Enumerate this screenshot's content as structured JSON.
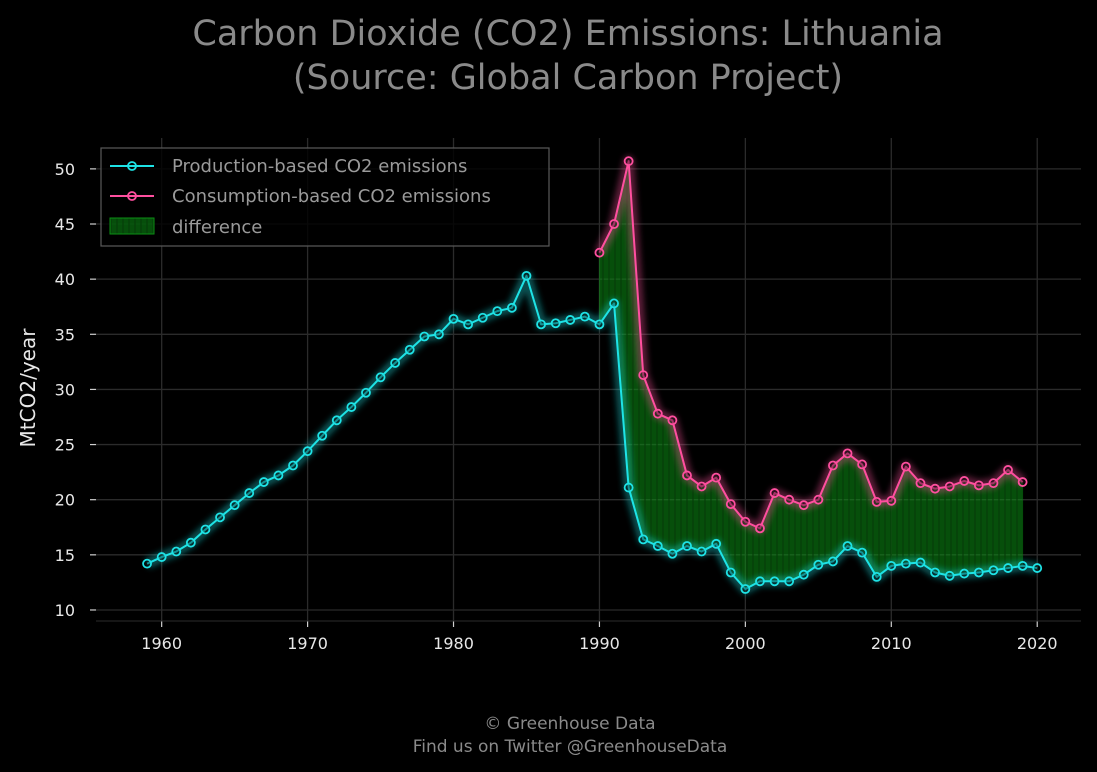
{
  "chart_data": {
    "type": "line",
    "title_lines": [
      "Carbon Dioxide (CO2) Emissions: Lithuania",
      "(Source: Global Carbon Project)"
    ],
    "xlabel": "",
    "ylabel": "MtCO2/year",
    "xlim": [
      1955.5,
      2023.0
    ],
    "ylim": [
      9.0,
      52.8
    ],
    "xticks": [
      1960,
      1970,
      1980,
      1990,
      2000,
      2010,
      2020
    ],
    "yticks": [
      10,
      15,
      20,
      25,
      30,
      35,
      40,
      45,
      50
    ],
    "grid": true,
    "legend_position": "top-left",
    "series": [
      {
        "name": "Production-based CO2 emissions",
        "color": "#1ee3e6",
        "x": [
          1959,
          1960,
          1961,
          1962,
          1963,
          1964,
          1965,
          1966,
          1967,
          1968,
          1969,
          1970,
          1971,
          1972,
          1973,
          1974,
          1975,
          1976,
          1977,
          1978,
          1979,
          1980,
          1981,
          1982,
          1983,
          1984,
          1985,
          1986,
          1987,
          1988,
          1989,
          1990,
          1991,
          1992,
          1993,
          1994,
          1995,
          1996,
          1997,
          1998,
          1999,
          2000,
          2001,
          2002,
          2003,
          2004,
          2005,
          2006,
          2007,
          2008,
          2009,
          2010,
          2011,
          2012,
          2013,
          2014,
          2015,
          2016,
          2017,
          2018,
          2019,
          2020
        ],
        "y": [
          14.2,
          14.8,
          15.3,
          16.1,
          17.3,
          18.4,
          19.5,
          20.6,
          21.6,
          22.2,
          23.1,
          24.4,
          25.8,
          27.2,
          28.4,
          29.7,
          31.1,
          32.4,
          33.6,
          34.8,
          35.0,
          36.4,
          35.9,
          36.5,
          37.1,
          37.4,
          40.3,
          35.9,
          36.0,
          36.3,
          36.6,
          35.9,
          37.8,
          21.1,
          16.4,
          15.8,
          15.1,
          15.8,
          15.3,
          16.0,
          13.4,
          11.9,
          12.6,
          12.6,
          12.6,
          13.2,
          14.1,
          14.4,
          15.8,
          15.2,
          13.0,
          14.0,
          14.2,
          14.3,
          13.4,
          13.1,
          13.3,
          13.4,
          13.6,
          13.8,
          14.0,
          13.8
        ]
      },
      {
        "name": "Consumption-based CO2 emissions",
        "color": "#ff4f9f",
        "x": [
          1990,
          1991,
          1992,
          1993,
          1994,
          1995,
          1996,
          1997,
          1998,
          1999,
          2000,
          2001,
          2002,
          2003,
          2004,
          2005,
          2006,
          2007,
          2008,
          2009,
          2010,
          2011,
          2012,
          2013,
          2014,
          2015,
          2016,
          2017,
          2018,
          2019
        ],
        "y": [
          42.4,
          45.0,
          50.7,
          31.3,
          27.8,
          27.2,
          22.2,
          21.2,
          22.0,
          19.6,
          18.0,
          17.4,
          20.6,
          20.0,
          19.5,
          20.0,
          23.1,
          24.2,
          23.2,
          19.8,
          19.9,
          23.0,
          21.5,
          21.0,
          21.2,
          21.7,
          21.3,
          21.5,
          22.7,
          21.6
        ]
      }
    ],
    "fill_between": {
      "name": "difference",
      "color": "#0b8f14",
      "x_range": [
        1990,
        2019
      ]
    }
  },
  "footer": {
    "line1": "© Greenhouse Data",
    "line2": "Find us on Twitter @GreenhouseData"
  }
}
